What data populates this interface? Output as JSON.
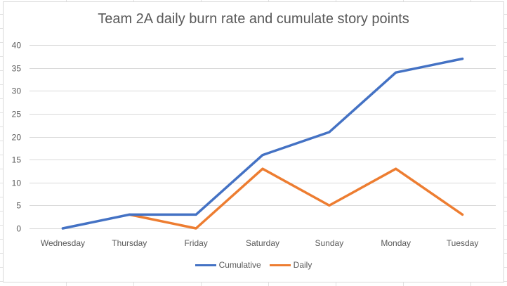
{
  "chart_data": {
    "type": "line",
    "title": "Team 2A daily burn rate and cumulate story points",
    "xlabel": "",
    "ylabel": "",
    "categories": [
      "Wednesday",
      "Thursday",
      "Friday",
      "Saturday",
      "Sunday",
      "Monday",
      "Tuesday"
    ],
    "ylim": [
      0,
      40
    ],
    "yticks": [
      0,
      5,
      10,
      15,
      20,
      25,
      30,
      35,
      40
    ],
    "grid": true,
    "legend_position": "bottom",
    "series": [
      {
        "name": "Cumulative",
        "color": "#4472c4",
        "values": [
          0,
          3,
          3,
          16,
          21,
          34,
          37
        ]
      },
      {
        "name": "Daily",
        "color": "#ed7d31",
        "values": [
          null,
          3,
          0,
          13,
          5,
          13,
          3
        ]
      }
    ]
  }
}
